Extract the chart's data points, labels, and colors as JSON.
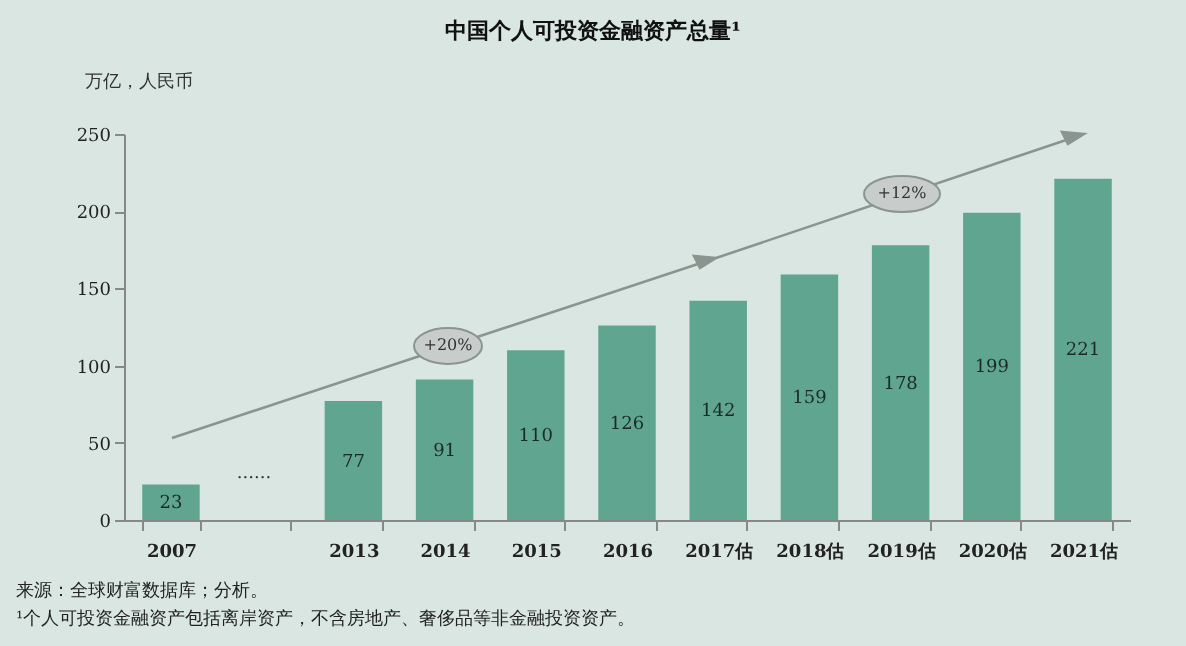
{
  "chart_data": {
    "type": "bar",
    "title": "中国个人可投资金融资产总量¹",
    "ylabel": "万亿，人民币",
    "categories": [
      "2007",
      null,
      "2013",
      "2014",
      "2015",
      "2016",
      "2017估",
      "2018估",
      "2019估",
      "2020估",
      "2021估"
    ],
    "values": [
      23,
      null,
      77,
      91,
      110,
      126,
      142,
      159,
      178,
      199,
      221
    ],
    "color": "#5fa58f",
    "ylim": [
      0,
      250
    ],
    "yticks": [
      0,
      50,
      100,
      150,
      200,
      250
    ],
    "data_labels": true,
    "grid": false,
    "annotations": [
      "+20%",
      "+12%",
      "......",
      "来源：全球财富数据库；分析。",
      "¹个人可投资金融资产包括离岸资产，不含房地产、奢侈品等非金融投资资产。"
    ]
  }
}
